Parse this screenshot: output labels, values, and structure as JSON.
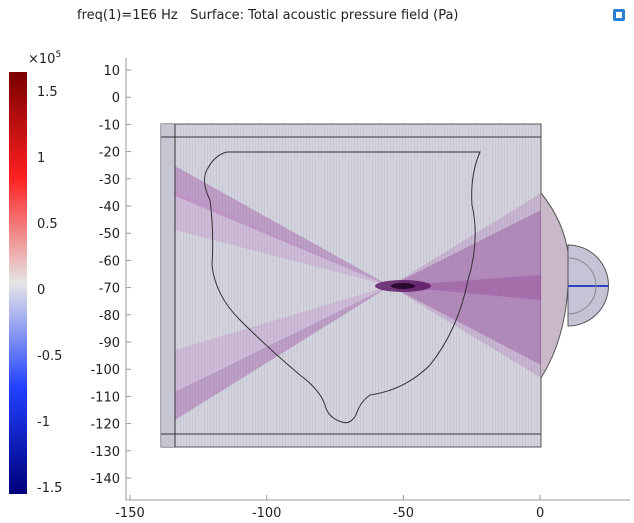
{
  "title": "freq(1)=1E6 Hz   Surface: Total acoustic pressure field (Pa)",
  "icons": {
    "corner": "cube-view-icon"
  },
  "colorbar": {
    "multiplier_base": "×10",
    "multiplier_exp": "5",
    "ticks": [
      "1.5",
      "1",
      "0.5",
      "0",
      "-0.5",
      "-1",
      "-1.5"
    ],
    "range": [
      -1.6,
      1.6
    ],
    "colors": {
      "top": "#7a0000",
      "upper": "#ff2020",
      "mid": "#e6e6e6",
      "lower": "#2040ff",
      "bottom": "#00007a"
    }
  },
  "axes": {
    "x_ticks": [
      "-150",
      "-100",
      "-50",
      "0"
    ],
    "y_ticks": [
      "10",
      "0",
      "-10",
      "-20",
      "-30",
      "-40",
      "-50",
      "-60",
      "-70",
      "-80",
      "-90",
      "-100",
      "-110",
      "-120",
      "-130",
      "-140"
    ]
  },
  "field_colors": {
    "background": "#d4d4dc",
    "band": "#9a4fa0",
    "band_dark": "#6b1d6f",
    "outline": "#333333",
    "lens": "#c9c9d6"
  }
}
